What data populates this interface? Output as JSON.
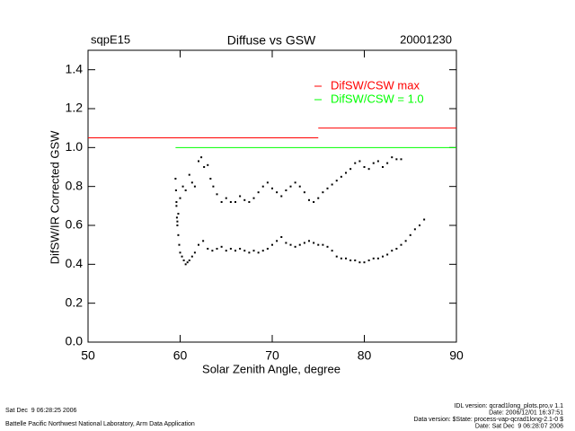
{
  "chart_data": {
    "type": "scatter",
    "site": "sqpE15",
    "title": "Diffuse vs GSW",
    "date": "20001230",
    "x_label": "Solar Zenith Angle, degree",
    "y_label": "DifSW/IR Corrected GSW",
    "xlim": [
      50,
      90
    ],
    "ylim": [
      0,
      1.5
    ],
    "xticks": [
      50,
      60,
      70,
      80,
      90
    ],
    "yticks": [
      {
        "value": 0,
        "label": "0.0"
      },
      {
        "value": 0.2,
        "label": "0.2"
      },
      {
        "value": 0.4,
        "label": "0.4"
      },
      {
        "value": 0.6,
        "label": "0.6"
      },
      {
        "value": 0.8,
        "label": "0.8"
      },
      {
        "value": 1.0,
        "label": "1.0"
      },
      {
        "value": 1.2,
        "label": "1.2"
      },
      {
        "value": 1.4,
        "label": "1.4"
      }
    ],
    "legend": "top-right",
    "series": [
      {
        "color": "#000000",
        "x": [
          59.5,
          59.55,
          59.6,
          59.65,
          59.7,
          59.8,
          60.0,
          60.3,
          60.6,
          61.0,
          61.3,
          61.6,
          62.0,
          62.3,
          62.6,
          63.0,
          63.3,
          63.6,
          64.0,
          64.5,
          65.0,
          65.5,
          66.0,
          66.5,
          67.0,
          67.5,
          68.0,
          68.5,
          69.0,
          69.5,
          70.0,
          70.5,
          71.0,
          71.5,
          72.0,
          72.5,
          73.0,
          73.5,
          74.0,
          74.5,
          75.0,
          75.5,
          76.0,
          76.5,
          77.0,
          77.5,
          78.0,
          78.5,
          79.0,
          79.5,
          80.0,
          80.5,
          81.0,
          81.5,
          82.0,
          82.5,
          83.0,
          83.5,
          84.0,
          59.6,
          59.7,
          59.8,
          59.9,
          60.0,
          60.2,
          60.4,
          60.6,
          60.8,
          61.0,
          61.3,
          61.6,
          62.0,
          62.5,
          63.0,
          63.5,
          64.0,
          64.5,
          65.0,
          65.5,
          66.0,
          66.5,
          67.0,
          67.5,
          68.0,
          68.5,
          69.0,
          69.5,
          70.0,
          70.5,
          71.0,
          71.5,
          72.0,
          72.5,
          73.0,
          73.5,
          74.0,
          74.5,
          75.0,
          75.5,
          76.0,
          76.5,
          77.0,
          77.5,
          78.0,
          78.5,
          79.0,
          79.5,
          80.0,
          80.5,
          81.0,
          81.5,
          82.0,
          82.5,
          83.0,
          83.5,
          84.0,
          84.5,
          85.0,
          85.5,
          86.0,
          86.5
        ],
        "values": [
          0.84,
          0.78,
          0.7,
          0.64,
          0.6,
          0.66,
          0.74,
          0.8,
          0.78,
          0.86,
          0.82,
          0.8,
          0.93,
          0.95,
          0.9,
          0.91,
          0.84,
          0.8,
          0.76,
          0.72,
          0.74,
          0.72,
          0.72,
          0.75,
          0.73,
          0.72,
          0.74,
          0.77,
          0.8,
          0.82,
          0.79,
          0.77,
          0.75,
          0.78,
          0.8,
          0.82,
          0.8,
          0.77,
          0.73,
          0.72,
          0.74,
          0.77,
          0.79,
          0.81,
          0.83,
          0.85,
          0.87,
          0.89,
          0.92,
          0.93,
          0.9,
          0.89,
          0.92,
          0.93,
          0.9,
          0.92,
          0.95,
          0.94,
          0.94,
          0.72,
          0.62,
          0.55,
          0.5,
          0.46,
          0.44,
          0.42,
          0.4,
          0.41,
          0.42,
          0.44,
          0.46,
          0.5,
          0.52,
          0.48,
          0.47,
          0.48,
          0.49,
          0.47,
          0.48,
          0.47,
          0.48,
          0.47,
          0.46,
          0.47,
          0.46,
          0.47,
          0.48,
          0.5,
          0.52,
          0.54,
          0.51,
          0.5,
          0.49,
          0.5,
          0.51,
          0.52,
          0.51,
          0.5,
          0.5,
          0.49,
          0.47,
          0.44,
          0.43,
          0.43,
          0.42,
          0.42,
          0.41,
          0.41,
          0.42,
          0.43,
          0.43,
          0.44,
          0.45,
          0.47,
          0.48,
          0.5,
          0.52,
          0.55,
          0.58,
          0.6,
          0.63
        ]
      },
      {
        "name": "DifSW/CSW max",
        "color": "#ff0000",
        "x": [
          50,
          75,
          75,
          75,
          90
        ],
        "values": [
          1.05,
          1.05,
          null,
          1.1,
          1.1
        ]
      },
      {
        "name": "DifSW/CSW = 1.0",
        "color": "#00ff00",
        "x": [
          59.5,
          90
        ],
        "values": [
          1.0,
          1.0
        ]
      }
    ],
    "footer_left": [
      "Sat Dec  9 06:28:25 2006",
      "Battelle Pacific Northwest National Laboratory, Arm Data Application"
    ],
    "footer_right": [
      "IDL version: qcrad1long_plots.pro,v 1.1",
      "Date: 2006/12/01 16:37:51",
      "Data version: $State: process-vap-qcrad1long-2.1-0 $",
      "Date: Sat Dec  9 06:28:07 2006"
    ]
  }
}
